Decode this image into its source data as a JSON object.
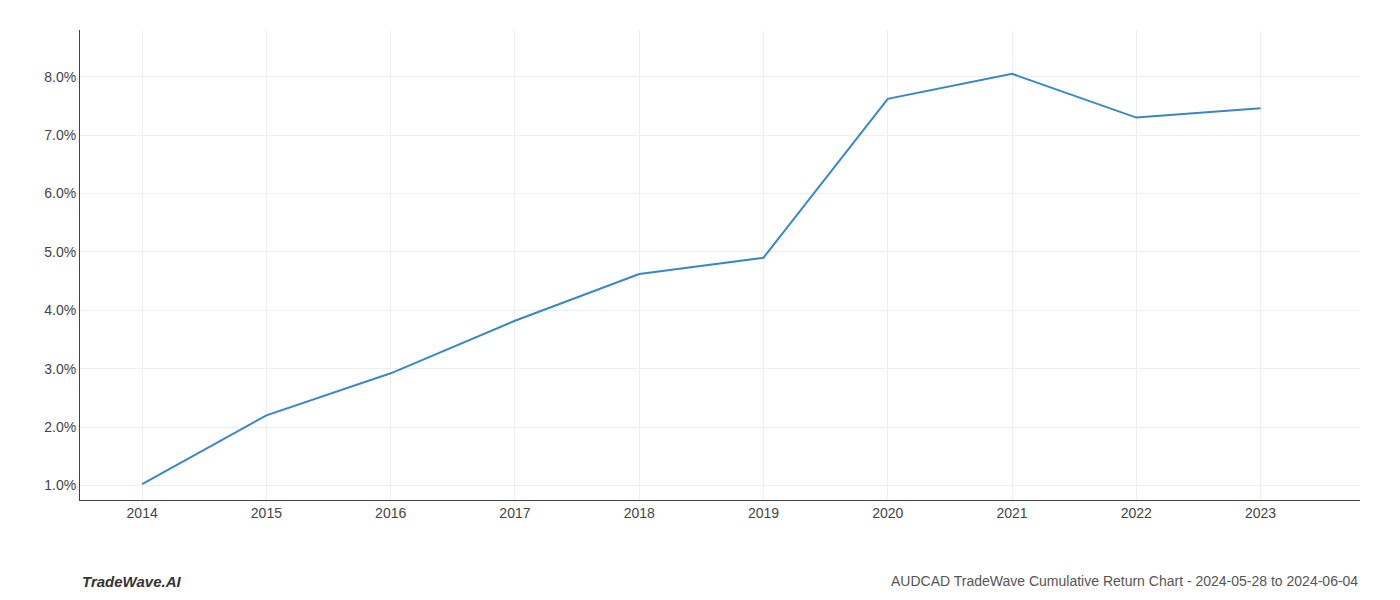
{
  "chart_data": {
    "type": "line",
    "x": [
      2014,
      2015,
      2016,
      2017,
      2018,
      2019,
      2020,
      2021,
      2022,
      2023
    ],
    "values": [
      1.02,
      2.2,
      2.92,
      3.82,
      4.62,
      4.9,
      7.62,
      8.05,
      7.3,
      7.46
    ],
    "color": "#3a87c8",
    "xlim": [
      2013.5,
      2023.8
    ],
    "xticks": [
      2014,
      2015,
      2016,
      2017,
      2018,
      2019,
      2020,
      2021,
      2022,
      2023
    ],
    "ylim": [
      0.75,
      8.8
    ],
    "yticks": [
      {
        "value": 1.0,
        "label": "1.0%"
      },
      {
        "value": 2.0,
        "label": "2.0%"
      },
      {
        "value": 3.0,
        "label": "3.0%"
      },
      {
        "value": 4.0,
        "label": "4.0%"
      },
      {
        "value": 5.0,
        "label": "5.0%"
      },
      {
        "value": 6.0,
        "label": "6.0%"
      },
      {
        "value": 7.0,
        "label": "7.0%"
      },
      {
        "value": 8.0,
        "label": "8.0%"
      }
    ],
    "grid": true,
    "annotations": [
      "TradeWave.AI",
      "AUDCAD TradeWave Cumulative Return Chart - 2024-05-28 to 2024-06-04"
    ]
  }
}
